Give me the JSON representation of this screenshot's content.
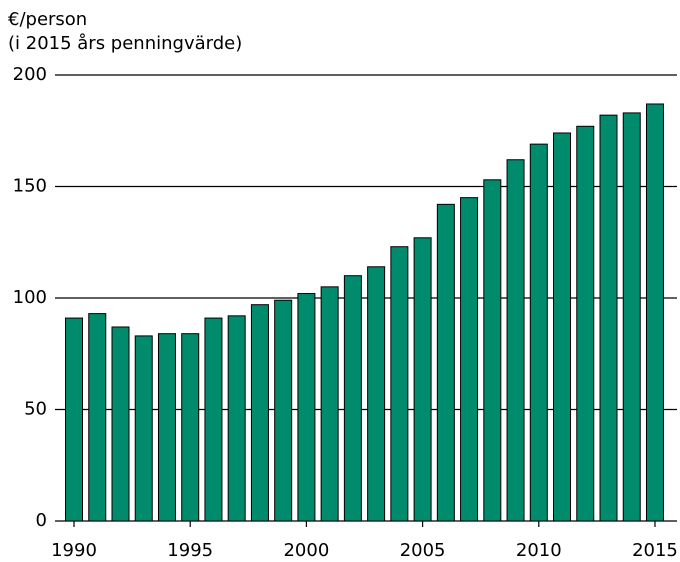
{
  "chart_data": {
    "type": "bar",
    "y_label": [
      "€/person",
      "(i 2015 års penningvärde)"
    ],
    "categories": [
      "1990",
      null,
      null,
      null,
      null,
      "1995",
      null,
      null,
      null,
      null,
      "2000",
      null,
      null,
      null,
      null,
      "2005",
      null,
      null,
      null,
      null,
      "2010",
      null,
      null,
      null,
      null,
      "2015"
    ],
    "values": [
      91,
      93,
      87,
      83,
      84,
      84,
      91,
      92,
      97,
      99,
      102,
      105,
      110,
      114,
      123,
      127,
      142,
      145,
      153,
      162,
      169,
      174,
      177,
      182,
      183,
      187
    ],
    "color": "#008c6c",
    "ylim": [
      0,
      200
    ],
    "yticks": [
      0,
      50,
      100,
      150,
      200
    ],
    "grid": true
  }
}
